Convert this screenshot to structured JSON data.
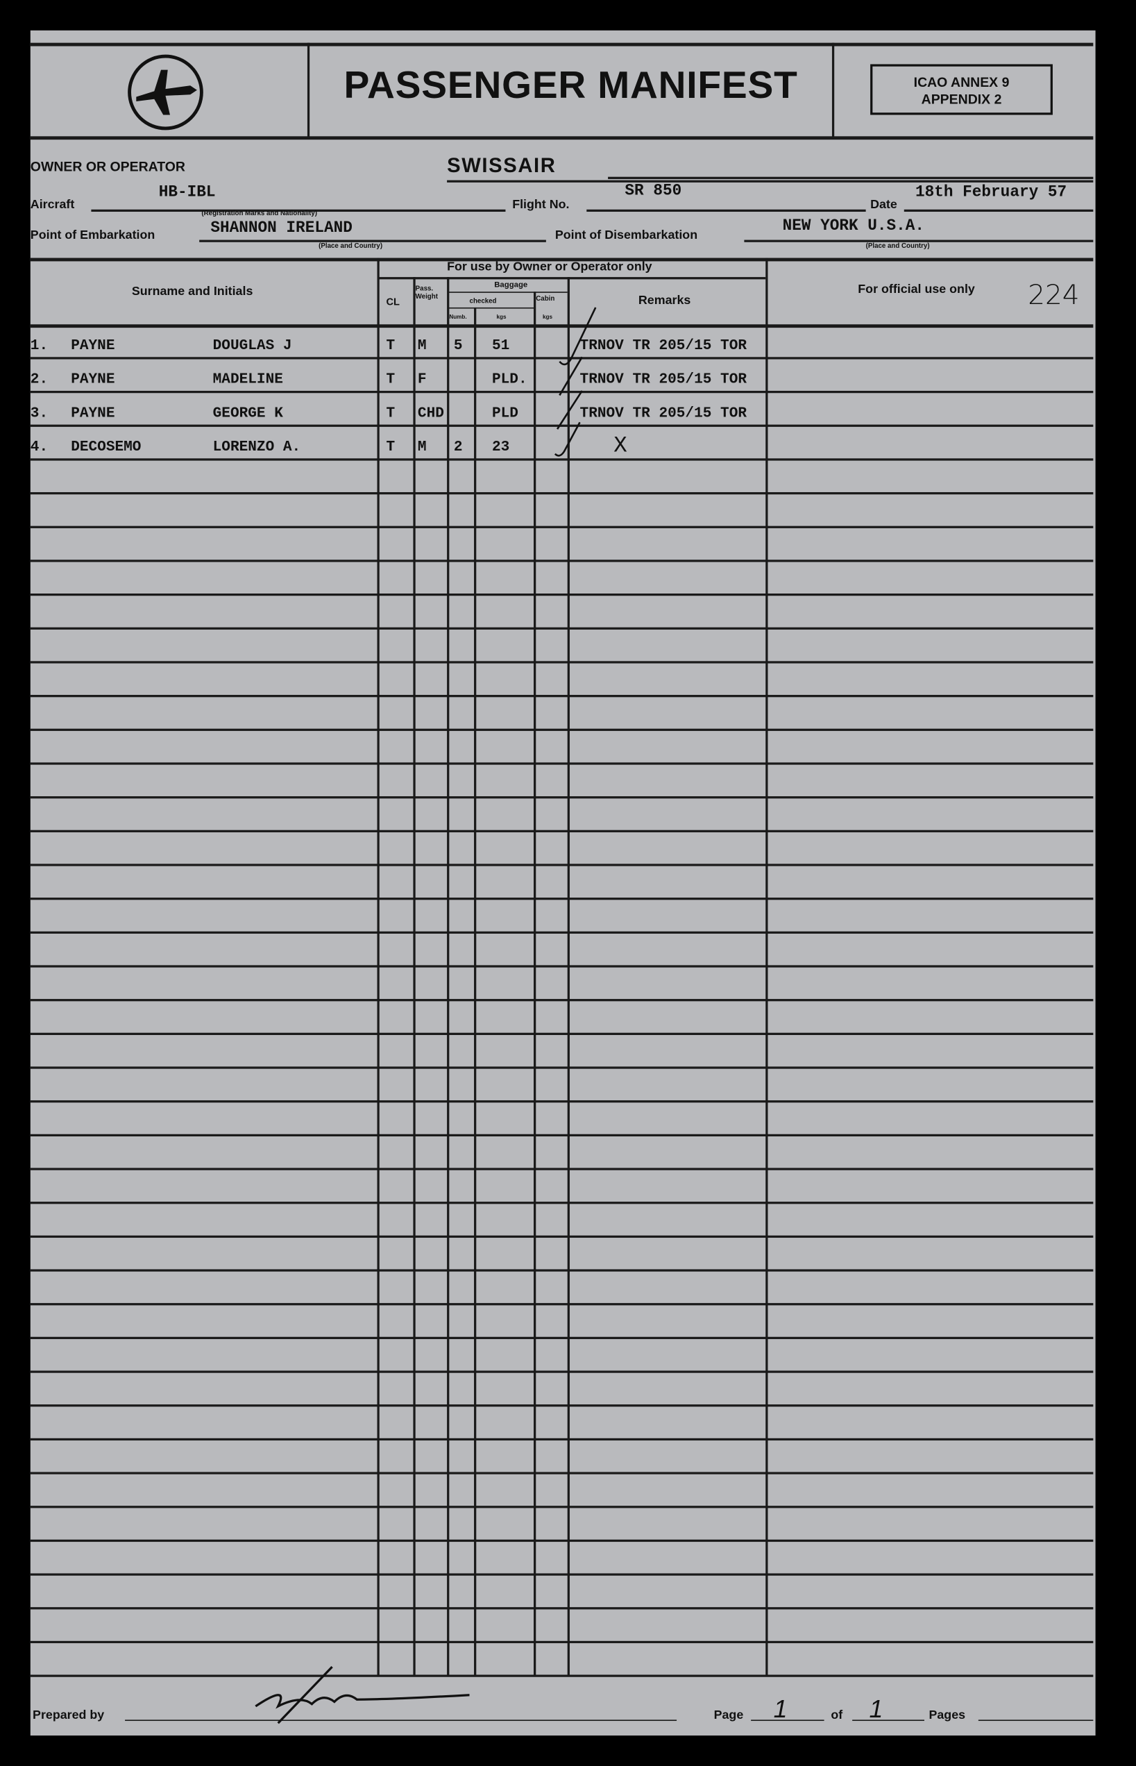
{
  "header": {
    "title": "PASSENGER MANIFEST",
    "icao_line1": "ICAO ANNEX 9",
    "icao_line2": "APPENDIX 2",
    "logo_icon": "airplane-in-circle-icon"
  },
  "fields": {
    "owner_label": "OWNER OR OPERATOR",
    "owner_value": "SWISSAIR",
    "aircraft_label": "Aircraft",
    "aircraft_value": "HB-IBL",
    "aircraft_note": "(Registration Marks and Nationality)",
    "flight_label": "Flight No.",
    "flight_value": "SR 850",
    "date_label": "Date",
    "date_value": "18th February 57",
    "embark_label": "Point of Embarkation",
    "embark_value": "SHANNON IRELAND",
    "embark_note": "(Place and Country)",
    "disembark_label": "Point of Disembarkation",
    "disembark_value": "NEW YORK U.S.A.",
    "disembark_note": "(Place and Country)"
  },
  "table": {
    "col_name": "Surname and Initials",
    "owner_use": "For use by Owner or Operator only",
    "col_class": "CL",
    "col_weight": "Pass. Weight",
    "col_baggage": "Baggage",
    "col_checked": "checked",
    "col_cabin": "Cabin",
    "col_number": "Numb.",
    "col_kgs": "kgs",
    "col_cabin_kgs": "kgs",
    "col_remarks": "Remarks",
    "official_use": "For official use only",
    "official_number": "224",
    "rows": [
      {
        "num": "1.",
        "surname": "PAYNE",
        "given": "DOUGLAS J",
        "cl": "T",
        "weight": "M",
        "bag_num": "5",
        "bag_kgs": "51",
        "remarks": "TRNOV TR 205/15 TOR"
      },
      {
        "num": "2.",
        "surname": "PAYNE",
        "given": "MADELINE",
        "cl": "T",
        "weight": "F",
        "bag_num": "",
        "bag_kgs": "PLD.",
        "remarks": "TRNOV TR 205/15 TOR"
      },
      {
        "num": "3.",
        "surname": "PAYNE",
        "given": "GEORGE   K",
        "cl": "T",
        "weight": "CHD",
        "bag_num": "",
        "bag_kgs": "PLD",
        "remarks": "TRNOV TR 205/15 TOR"
      },
      {
        "num": "4.",
        "surname": "DECOSEMO",
        "given": "LORENZO   A.",
        "cl": "T",
        "weight": "M",
        "bag_num": "2",
        "bag_kgs": "23",
        "remarks": "X"
      }
    ]
  },
  "footer": {
    "prepared_label": "Prepared by",
    "page_label": "Page",
    "page_value": "1",
    "of_label": "of",
    "pages_value": "1",
    "pages_label": "Pages"
  }
}
